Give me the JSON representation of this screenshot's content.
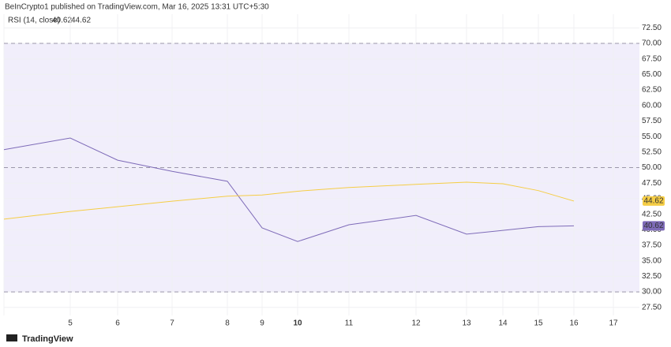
{
  "header": "BeInCrypto1 published on TradingView.com, Mar 16, 2025 13:31 UTC+5:30",
  "footer": "TradingView",
  "chart_data": {
    "type": "line",
    "indicator_label": "RSI (14, close)",
    "categories": [
      null,
      "5",
      "6",
      "7",
      "8",
      "9",
      "10",
      "11",
      "12",
      "13",
      "14",
      "15",
      "16",
      "17"
    ],
    "series": [
      {
        "color": "#7e6bb8",
        "values": [
          52.9,
          54.76,
          51.2,
          49.4,
          47.8,
          40.3,
          38.1,
          40.8,
          42.3,
          39.3,
          39.9,
          40.5,
          40.62,
          null
        ]
      },
      {
        "color": "#f5cd45",
        "values": [
          41.7,
          42.95,
          43.7,
          44.6,
          45.4,
          45.6,
          46.2,
          46.8,
          47.3,
          47.65,
          47.4,
          46.3,
          44.62,
          null
        ]
      }
    ],
    "ylim": [
      26.2,
      74.7
    ],
    "yticks": [
      {
        "value": 27.5,
        "label": "27.50"
      },
      {
        "value": 30,
        "label": "30.00"
      },
      {
        "value": 32.5,
        "label": "32.50"
      },
      {
        "value": 35,
        "label": "35.00"
      },
      {
        "value": 37.5,
        "label": "37.50"
      },
      {
        "value": 40,
        "label": "40.00"
      },
      {
        "value": 42.5,
        "label": "42.50"
      },
      {
        "value": 45,
        "label": "45.00"
      },
      {
        "value": 47.5,
        "label": "47.50"
      },
      {
        "value": 50,
        "label": "50.00"
      },
      {
        "value": 52.5,
        "label": "52.50"
      },
      {
        "value": 55,
        "label": "55.00"
      },
      {
        "value": 57.5,
        "label": "57.50"
      },
      {
        "value": 60,
        "label": "60.00"
      },
      {
        "value": 62.5,
        "label": "62.50"
      },
      {
        "value": 65,
        "label": "65.00"
      },
      {
        "value": 67.5,
        "label": "67.50"
      },
      {
        "value": 70,
        "label": "70.00"
      },
      {
        "value": 72.5,
        "label": "72.50"
      }
    ],
    "band": [
      30,
      70
    ],
    "band_lines": [
      70,
      50,
      30
    ],
    "band_color": "#f1eefb",
    "grid": true
  }
}
